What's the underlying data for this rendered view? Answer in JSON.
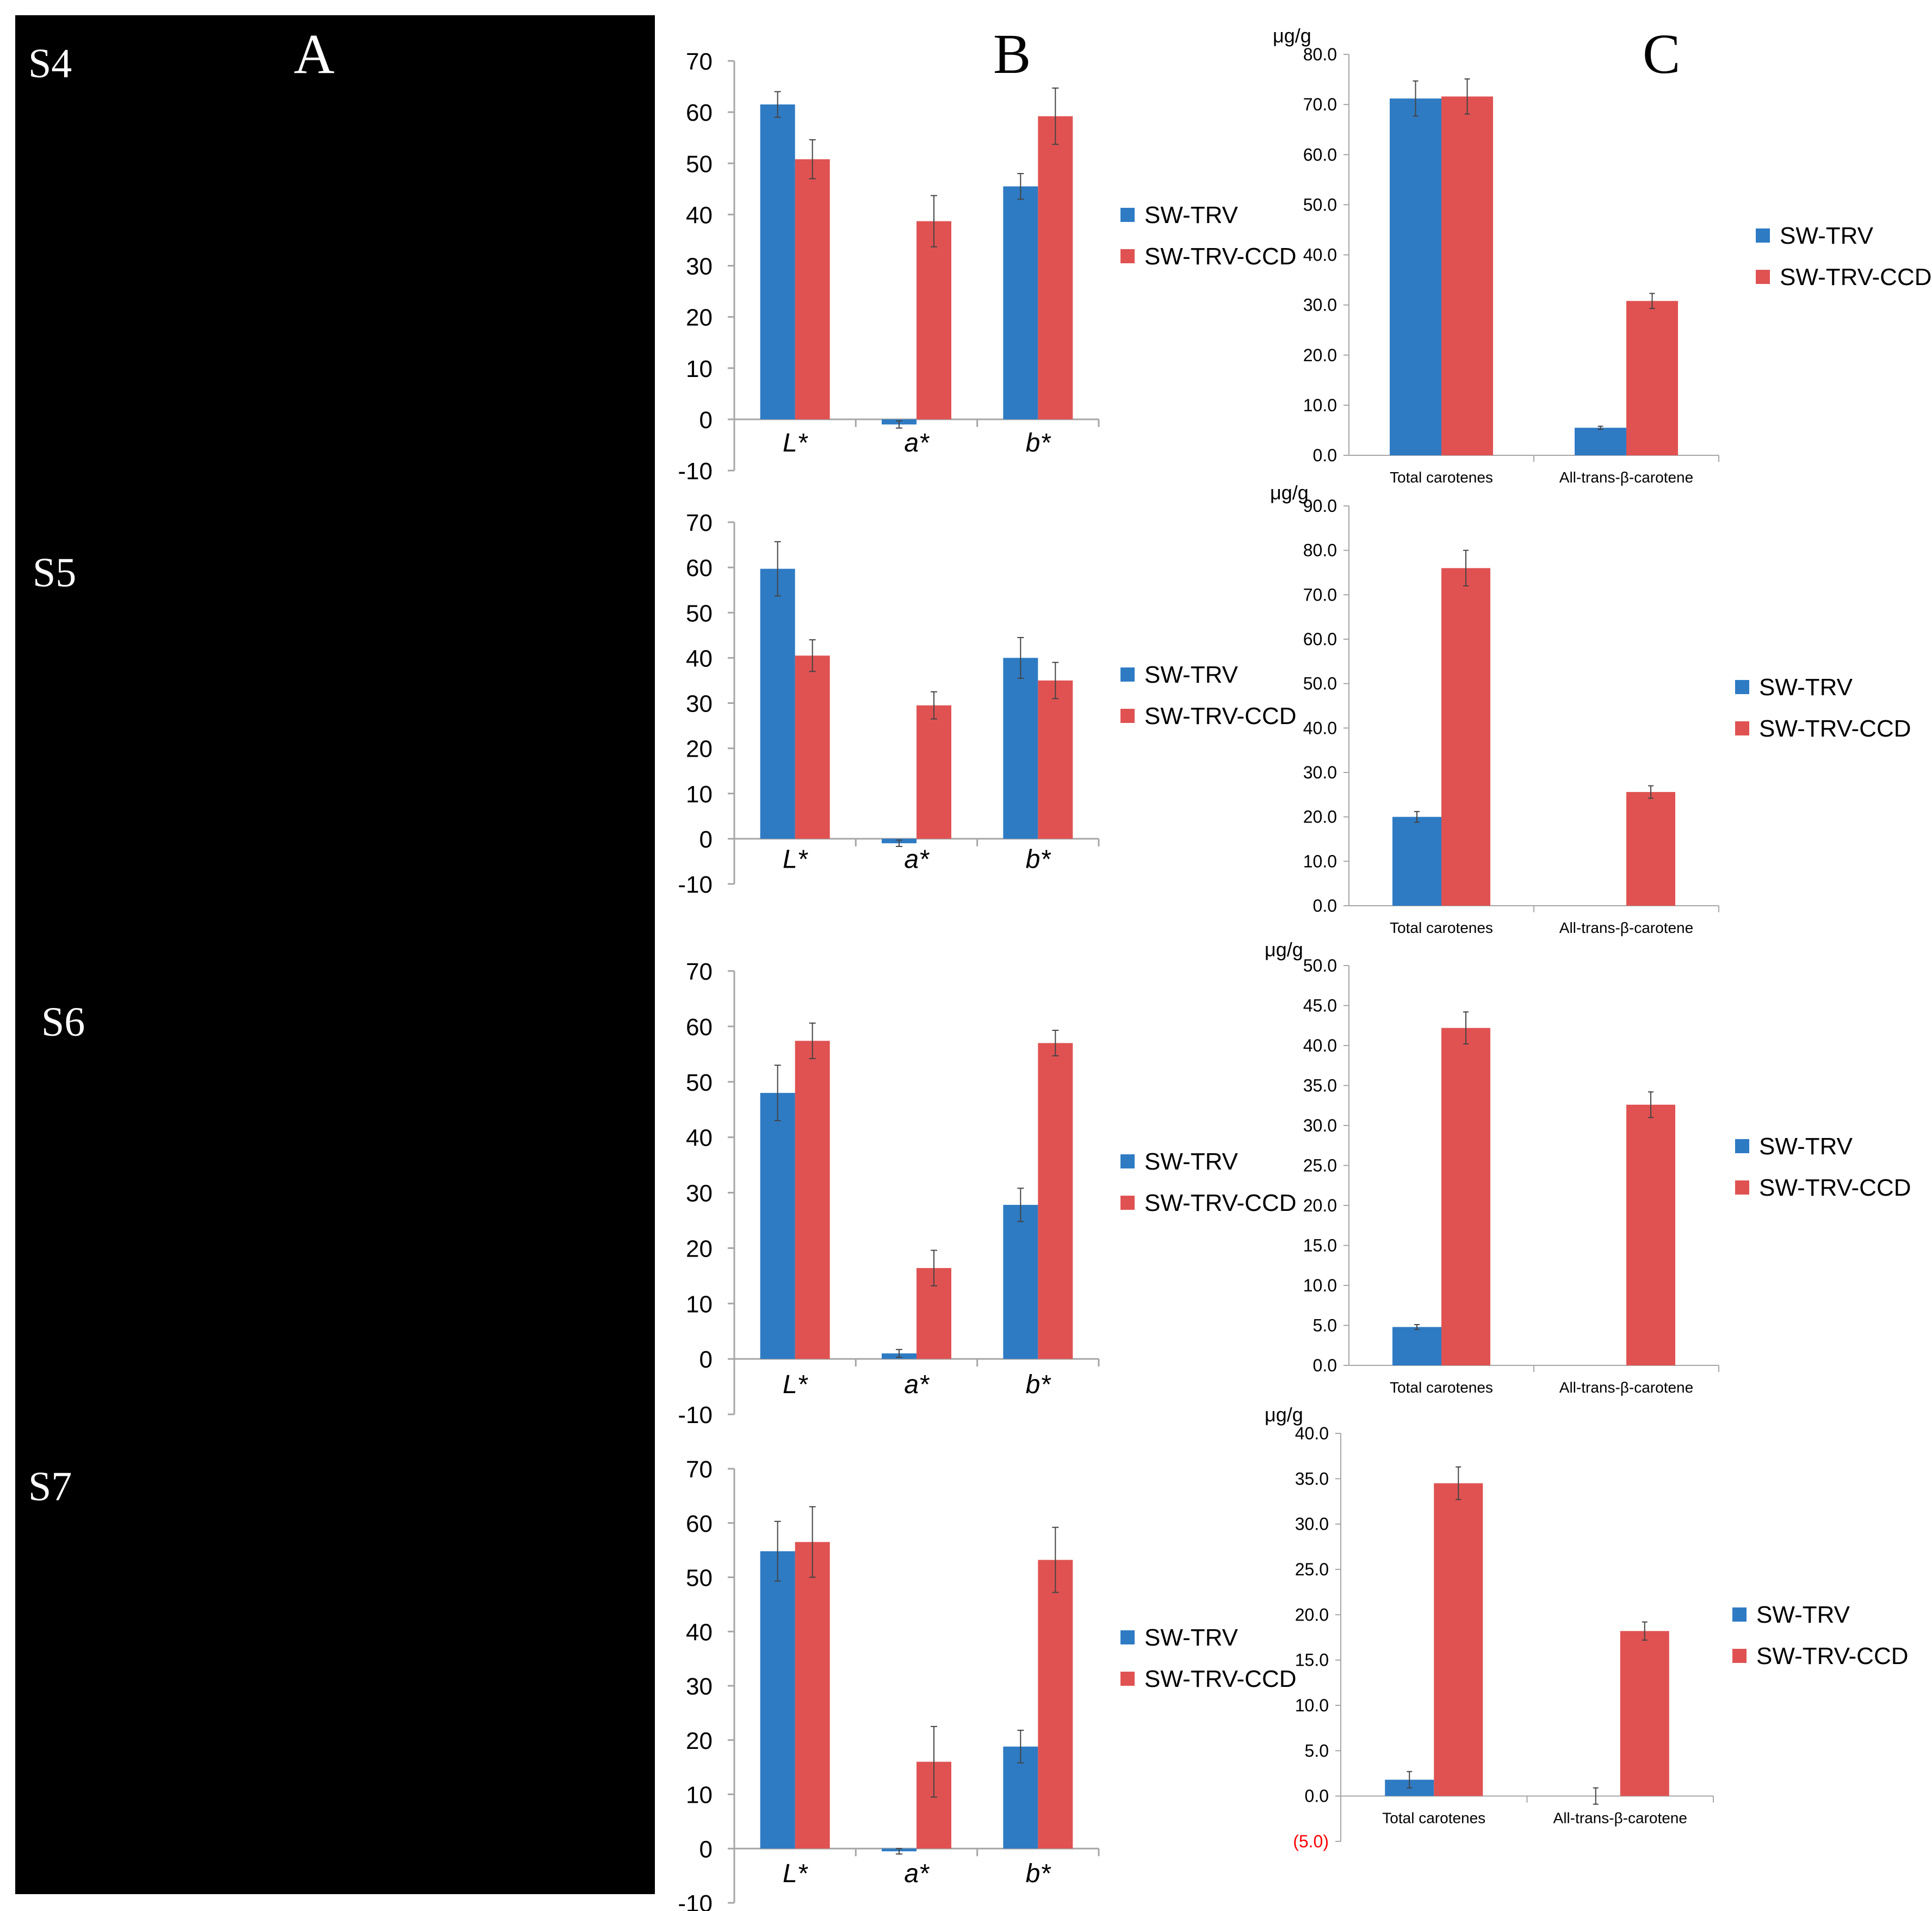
{
  "panels": {
    "A": "A",
    "B": "B",
    "C": "C"
  },
  "colors": {
    "blue": "#2E7BC4",
    "red": "#E05252",
    "error": "#444444",
    "axis": "#a6a6a6",
    "negative": "#FF0000"
  },
  "legend": {
    "series1": "SW-TRV",
    "series2": "SW-TRV-CCD"
  },
  "stages": [
    "S4",
    "S5",
    "S6",
    "S7"
  ],
  "chart_data": [
    {
      "id": "B-S4",
      "type": "bar",
      "title": "",
      "categories": [
        "L*",
        "a*",
        "b*"
      ],
      "ylim": [
        -10,
        70
      ],
      "yticks": [
        -10,
        0,
        10,
        20,
        30,
        40,
        50,
        60,
        70
      ],
      "series": [
        {
          "name": "SW-TRV",
          "values": [
            61.5,
            -1,
            45.5
          ],
          "errors": [
            2.5,
            0.7,
            2.5
          ]
        },
        {
          "name": "SW-TRV-CCD",
          "values": [
            50.8,
            38.7,
            59.2
          ],
          "errors": [
            3.8,
            5,
            5.5
          ]
        }
      ]
    },
    {
      "id": "B-S5",
      "type": "bar",
      "title": "",
      "categories": [
        "L*",
        "a*",
        "b*"
      ],
      "ylim": [
        -10,
        70
      ],
      "yticks": [
        -10,
        0,
        10,
        20,
        30,
        40,
        50,
        60,
        70
      ],
      "series": [
        {
          "name": "SW-TRV",
          "values": [
            59.7,
            -1,
            40
          ],
          "errors": [
            6,
            0.7,
            4.5
          ]
        },
        {
          "name": "SW-TRV-CCD",
          "values": [
            40.5,
            29.5,
            35
          ],
          "errors": [
            3.5,
            3,
            4
          ]
        }
      ]
    },
    {
      "id": "B-S6",
      "type": "bar",
      "title": "",
      "categories": [
        "L*",
        "a*",
        "b*"
      ],
      "ylim": [
        -10,
        70
      ],
      "yticks": [
        -10,
        0,
        10,
        20,
        30,
        40,
        50,
        60,
        70
      ],
      "series": [
        {
          "name": "SW-TRV",
          "values": [
            48,
            1,
            27.8
          ],
          "errors": [
            5,
            0.7,
            3
          ]
        },
        {
          "name": "SW-TRV-CCD",
          "values": [
            57.4,
            16.4,
            57
          ],
          "errors": [
            3.2,
            3.2,
            2.3
          ]
        }
      ]
    },
    {
      "id": "B-S7",
      "type": "bar",
      "title": "",
      "categories": [
        "L*",
        "a*",
        "b*"
      ],
      "ylim": [
        -10,
        70
      ],
      "yticks": [
        -10,
        0,
        10,
        20,
        30,
        40,
        50,
        60,
        70
      ],
      "series": [
        {
          "name": "SW-TRV",
          "values": [
            54.8,
            -0.5,
            18.8
          ],
          "errors": [
            5.5,
            0.5,
            3
          ]
        },
        {
          "name": "SW-TRV-CCD",
          "values": [
            56.5,
            16,
            53.2
          ],
          "errors": [
            6.5,
            6.5,
            6
          ]
        }
      ]
    },
    {
      "id": "C-S4",
      "type": "bar",
      "title": "",
      "ylabel": "μg/g",
      "categories": [
        "Total carotenes",
        "All-trans-β-carotene"
      ],
      "ylim": [
        0,
        80
      ],
      "yticks": [
        "0.0",
        "10.0",
        "20.0",
        "30.0",
        "40.0",
        "50.0",
        "60.0",
        "70.0",
        "80.0"
      ],
      "series": [
        {
          "name": "SW-TRV",
          "values": [
            71.2,
            5.5
          ],
          "errors": [
            3.5,
            0.3
          ]
        },
        {
          "name": "SW-TRV-CCD",
          "values": [
            71.6,
            30.8
          ],
          "errors": [
            3.5,
            1.5
          ]
        }
      ]
    },
    {
      "id": "C-S5",
      "type": "bar",
      "title": "",
      "ylabel": "μg/g",
      "categories": [
        "Total carotenes",
        "All-trans-β-carotene"
      ],
      "ylim": [
        0,
        90
      ],
      "yticks": [
        "0.0",
        "10.0",
        "20.0",
        "30.0",
        "40.0",
        "50.0",
        "60.0",
        "70.0",
        "80.0",
        "90.0"
      ],
      "series": [
        {
          "name": "SW-TRV",
          "values": [
            20,
            0
          ],
          "errors": [
            1.2,
            0
          ]
        },
        {
          "name": "SW-TRV-CCD",
          "values": [
            76,
            25.6
          ],
          "errors": [
            4,
            1.4
          ]
        }
      ]
    },
    {
      "id": "C-S6",
      "type": "bar",
      "title": "",
      "ylabel": "μg/g",
      "categories": [
        "Total carotenes",
        "All-trans-β-carotene"
      ],
      "ylim": [
        0,
        50
      ],
      "yticks": [
        "0.0",
        "5.0",
        "10.0",
        "15.0",
        "20.0",
        "25.0",
        "30.0",
        "35.0",
        "40.0",
        "45.0",
        "50.0"
      ],
      "series": [
        {
          "name": "SW-TRV",
          "values": [
            4.8,
            0
          ],
          "errors": [
            0.3,
            0
          ]
        },
        {
          "name": "SW-TRV-CCD",
          "values": [
            42.2,
            32.6
          ],
          "errors": [
            2,
            1.6
          ]
        }
      ]
    },
    {
      "id": "C-S7",
      "type": "bar",
      "title": "",
      "ylabel": "μg/g",
      "categories": [
        "Total carotenes",
        "All-trans-β-carotene"
      ],
      "ylim": [
        -5,
        40
      ],
      "yticks": [
        "(5.0)",
        "0.0",
        "5.0",
        "10.0",
        "15.0",
        "20.0",
        "25.0",
        "30.0",
        "35.0",
        "40.0"
      ],
      "series": [
        {
          "name": "SW-TRV",
          "values": [
            1.8,
            0
          ],
          "errors": [
            0.9,
            0.9
          ]
        },
        {
          "name": "SW-TRV-CCD",
          "values": [
            34.5,
            18.2
          ],
          "errors": [
            1.8,
            1
          ]
        }
      ]
    }
  ]
}
